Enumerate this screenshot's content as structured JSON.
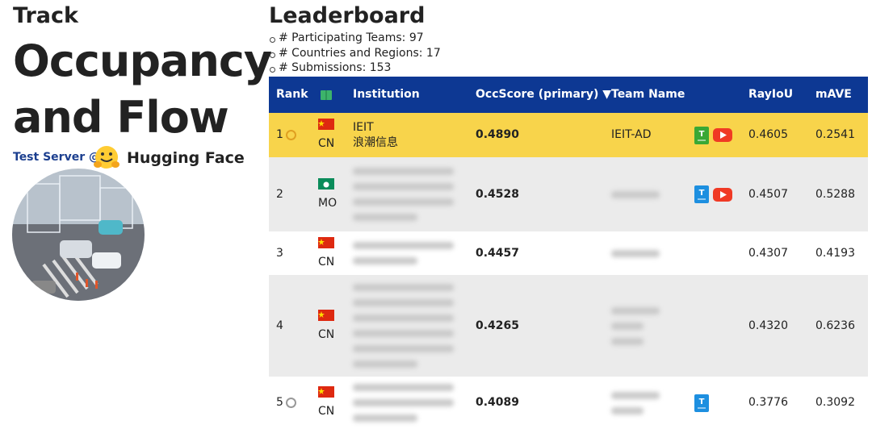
{
  "track": {
    "label": "Track",
    "title_lines": [
      "Occupancy",
      "and Flow"
    ],
    "server": "Test Server @",
    "platform": "Hugging Face"
  },
  "leaderboard": {
    "title": "Leaderboard",
    "stats": [
      "# Participating Teams: 97",
      "# Countries and Regions: 17",
      "# Submissions: 153"
    ],
    "columns": [
      "Rank",
      "Institution",
      "OccScore (primary) ▼",
      "Team Name",
      "RayIoU",
      "mAVE"
    ],
    "rows": [
      {
        "rank": 1,
        "country": "CN",
        "institution": [
          "IEIT",
          "浪潮信息"
        ],
        "occscore": "0.4890",
        "team": "IEIT-AD",
        "rayiou": "0.4605",
        "mave": "0.2541"
      },
      {
        "rank": 2,
        "country": "MO",
        "occscore": "0.4528",
        "rayiou": "0.4507",
        "mave": "0.5288"
      },
      {
        "rank": 3,
        "country": "CN",
        "occscore": "0.4457",
        "rayiou": "0.4307",
        "mave": "0.4193"
      },
      {
        "rank": 4,
        "country": "CN",
        "occscore": "0.4265",
        "rayiou": "0.4320",
        "mave": "0.6236"
      },
      {
        "rank": 5,
        "country": "CN",
        "occscore": "0.4089",
        "rayiou": "0.3776",
        "mave": "0.3092"
      }
    ]
  }
}
